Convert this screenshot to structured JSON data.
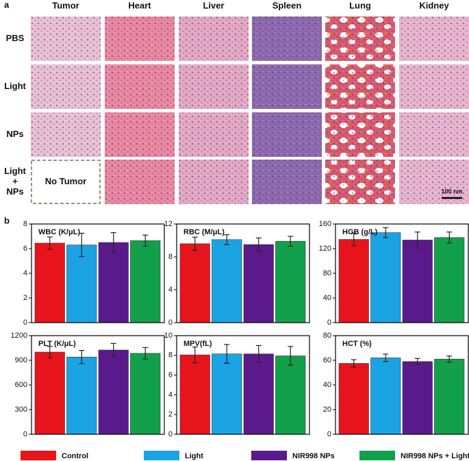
{
  "panel_a": {
    "label": "a",
    "columns": [
      "Tumor",
      "Heart",
      "Liver",
      "Spleen",
      "Lung",
      "Kidney"
    ],
    "rows": [
      [
        "PBS"
      ],
      [
        "Light"
      ],
      [
        "NPs"
      ],
      [
        "Light",
        "+",
        "NPs"
      ]
    ],
    "no_tumor": "No Tumor",
    "scale_bar": "100 nm"
  },
  "panel_b_label": "b",
  "legend": [
    {
      "name": "Control",
      "color": "#e8141c"
    },
    {
      "name": "Light",
      "color": "#1ba3e4"
    },
    {
      "name": "NIR998 NPs",
      "color": "#5b1a8b"
    },
    {
      "name": "NIR998 NPs + Light",
      "color": "#13a04a"
    }
  ],
  "chart_data": [
    {
      "type": "bar",
      "title": "WBC (K/μL)",
      "values": [
        6.45,
        6.3,
        6.5,
        6.65
      ],
      "errors": [
        0.5,
        0.95,
        0.8,
        0.45
      ],
      "ylim": [
        0,
        8
      ],
      "yticks": [
        0,
        2,
        4,
        6,
        8
      ]
    },
    {
      "type": "bar",
      "title": "RBC (M/μL)",
      "values": [
        9.6,
        10.1,
        9.5,
        9.9
      ],
      "errors": [
        0.8,
        0.6,
        0.8,
        0.6
      ],
      "ylim": [
        0,
        12
      ],
      "yticks": [
        0,
        4,
        8,
        12
      ]
    },
    {
      "type": "bar",
      "title": "HGB (g/L)",
      "values": [
        135,
        146,
        134,
        138
      ],
      "errors": [
        10,
        8,
        13,
        9
      ],
      "ylim": [
        0,
        160
      ],
      "yticks": [
        0,
        40,
        80,
        120,
        160
      ]
    },
    {
      "type": "bar",
      "title": "PLT (K/μL)",
      "values": [
        1000,
        940,
        1025,
        985
      ],
      "errors": [
        70,
        80,
        80,
        70
      ],
      "ylim": [
        0,
        1200
      ],
      "yticks": [
        0,
        300,
        600,
        900,
        1200
      ]
    },
    {
      "type": "bar",
      "title": "MPV(fL)",
      "values": [
        8.05,
        8.15,
        8.15,
        7.95
      ],
      "errors": [
        0.8,
        0.95,
        0.85,
        0.95
      ],
      "ylim": [
        0,
        10
      ],
      "yticks": [
        0,
        2,
        4,
        6,
        8,
        10
      ]
    },
    {
      "type": "bar",
      "title": "HCT (%)",
      "values": [
        57.5,
        62,
        59,
        61
      ],
      "errors": [
        3,
        3,
        2.5,
        2.5
      ],
      "ylim": [
        0,
        80
      ],
      "yticks": [
        0,
        20,
        40,
        60,
        80
      ]
    }
  ]
}
